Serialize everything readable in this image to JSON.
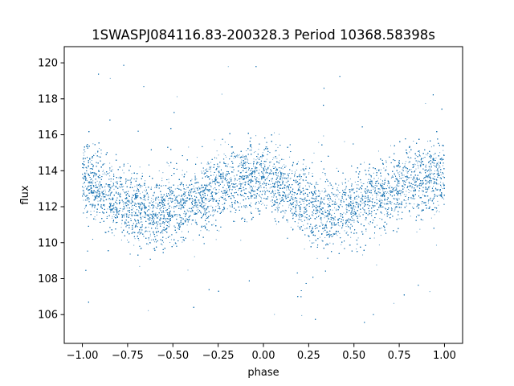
{
  "chart_data": {
    "type": "scatter",
    "title": "1SWASPJ084116.83-200328.3 Period 10368.58398s",
    "xlabel": "phase",
    "ylabel": "flux",
    "xlim": [
      -1.1,
      1.1
    ],
    "ylim": [
      104.4,
      120.9
    ],
    "x_ticks": [
      -1.0,
      -0.75,
      -0.5,
      -0.25,
      0.0,
      0.25,
      0.5,
      0.75,
      1.0
    ],
    "x_tick_labels": [
      "−1.00",
      "−0.75",
      "−0.50",
      "−0.25",
      "0.00",
      "0.25",
      "0.50",
      "0.75",
      "1.00"
    ],
    "y_ticks": [
      106,
      108,
      110,
      112,
      114,
      116,
      118,
      120
    ],
    "y_tick_labels": [
      "106",
      "108",
      "110",
      "112",
      "114",
      "116",
      "118",
      "120"
    ],
    "grid": false,
    "legend": "none",
    "marker_color": "#1f77b4",
    "series": [
      {
        "phase_range": [
          -1.0,
          1.0
        ],
        "point_count": 24000,
        "curve": {
          "phase": [
            -1.0,
            -0.9,
            -0.8,
            -0.7,
            -0.6,
            -0.5,
            -0.4,
            -0.3,
            -0.2,
            -0.1,
            0.0,
            0.1,
            0.2,
            0.3,
            0.4,
            0.5,
            0.6,
            0.7,
            0.8,
            0.9,
            1.0
          ],
          "flux": [
            113.5,
            113.0,
            112.4,
            111.9,
            111.7,
            111.9,
            112.3,
            112.8,
            113.3,
            113.6,
            113.5,
            113.0,
            112.4,
            111.9,
            111.7,
            111.9,
            112.3,
            112.8,
            113.3,
            113.6,
            113.5
          ]
        },
        "scatter_std": 1.0,
        "outlier_range": [
          105.3,
          120.2
        ]
      }
    ]
  }
}
